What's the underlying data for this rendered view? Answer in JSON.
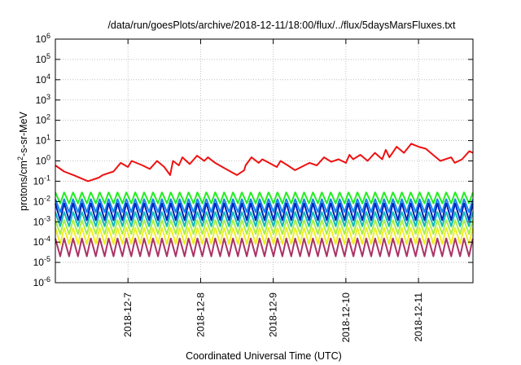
{
  "chart_data": {
    "type": "line",
    "title": "/data/run/goesPlots/archive/2018-12-11/18:00/flux/../flux/5daysMarsFluxes.txt",
    "xlabel": "Coordinated Universal Time (UTC)",
    "ylabel": {
      "base": "protons/cm",
      "sup": "2",
      "rest": "-s-sr-MeV"
    },
    "yscale": "log",
    "ylim": [
      1e-06,
      1000000.0
    ],
    "xlim": [
      "2018-12-06 00:00",
      "2018-12-11 18:00"
    ],
    "x_ticks": [
      "2018-12-7",
      "2018-12-8",
      "2018-12-9",
      "2018-12-10",
      "2018-12-11"
    ],
    "y_ticks": [
      {
        "base": "10",
        "exp": "-6"
      },
      {
        "base": "10",
        "exp": "-5"
      },
      {
        "base": "10",
        "exp": "-4"
      },
      {
        "base": "10",
        "exp": "-3"
      },
      {
        "base": "10",
        "exp": "-2"
      },
      {
        "base": "10",
        "exp": "-1"
      },
      {
        "base": "10",
        "exp": "0"
      },
      {
        "base": "10",
        "exp": "1"
      },
      {
        "base": "10",
        "exp": "2"
      },
      {
        "base": "10",
        "exp": "3"
      },
      {
        "base": "10",
        "exp": "4"
      },
      {
        "base": "10",
        "exp": "5"
      },
      {
        "base": "10",
        "exp": "6"
      }
    ],
    "grid": true,
    "sawtooth_cycles": 47,
    "series": [
      {
        "color": "#ee1111",
        "x_days": [
          0,
          0.12,
          0.25,
          0.45,
          0.6,
          0.65,
          0.8,
          0.9,
          1.0,
          1.05,
          1.2,
          1.3,
          1.4,
          1.5,
          1.58,
          1.62,
          1.7,
          1.75,
          1.85,
          1.95,
          2.05,
          2.1,
          2.2,
          2.3,
          2.5,
          2.6,
          2.62,
          2.7,
          2.8,
          2.85,
          3.05,
          3.1,
          3.2,
          3.3,
          3.5,
          3.6,
          3.7,
          3.8,
          3.9,
          4.0,
          4.05,
          4.1,
          4.2,
          4.3,
          4.4,
          4.5,
          4.55,
          4.6,
          4.7,
          4.8,
          4.9,
          5.0,
          5.1,
          5.2,
          5.3,
          5.45,
          5.5,
          5.6,
          5.7,
          5.75
        ],
        "values": [
          0.6,
          0.3,
          0.2,
          0.1,
          0.15,
          0.2,
          0.3,
          0.8,
          0.5,
          1.0,
          0.6,
          0.4,
          1.0,
          0.5,
          0.2,
          1.0,
          0.6,
          1.5,
          0.7,
          1.8,
          1.0,
          1.5,
          0.8,
          0.5,
          0.2,
          0.35,
          0.6,
          1.5,
          0.8,
          1.2,
          0.5,
          1.0,
          0.6,
          0.35,
          0.8,
          0.6,
          1.5,
          0.9,
          1.2,
          0.8,
          2.0,
          1.2,
          2.0,
          1.0,
          2.5,
          1.2,
          3.5,
          1.5,
          5.0,
          2.5,
          7.0,
          5.0,
          4.0,
          2.0,
          1.0,
          1.5,
          0.8,
          1.2,
          3.0,
          2.5
        ]
      },
      {
        "color": "#22ee22",
        "low": 0.008,
        "high": 0.028
      },
      {
        "color": "#1188ee",
        "low": 0.003,
        "high": 0.013
      },
      {
        "color": "#0022bb",
        "low": 0.0012,
        "high": 0.008
      },
      {
        "color": "#11bbbb",
        "low": 0.0006,
        "high": 0.003
      },
      {
        "color": "#aaee44",
        "low": 0.00025,
        "high": 0.0012
      },
      {
        "color": "#eeee22",
        "low": 8e-05,
        "high": 0.0005
      },
      {
        "color": "#aa3366",
        "low": 2e-05,
        "high": 0.00015
      }
    ]
  }
}
